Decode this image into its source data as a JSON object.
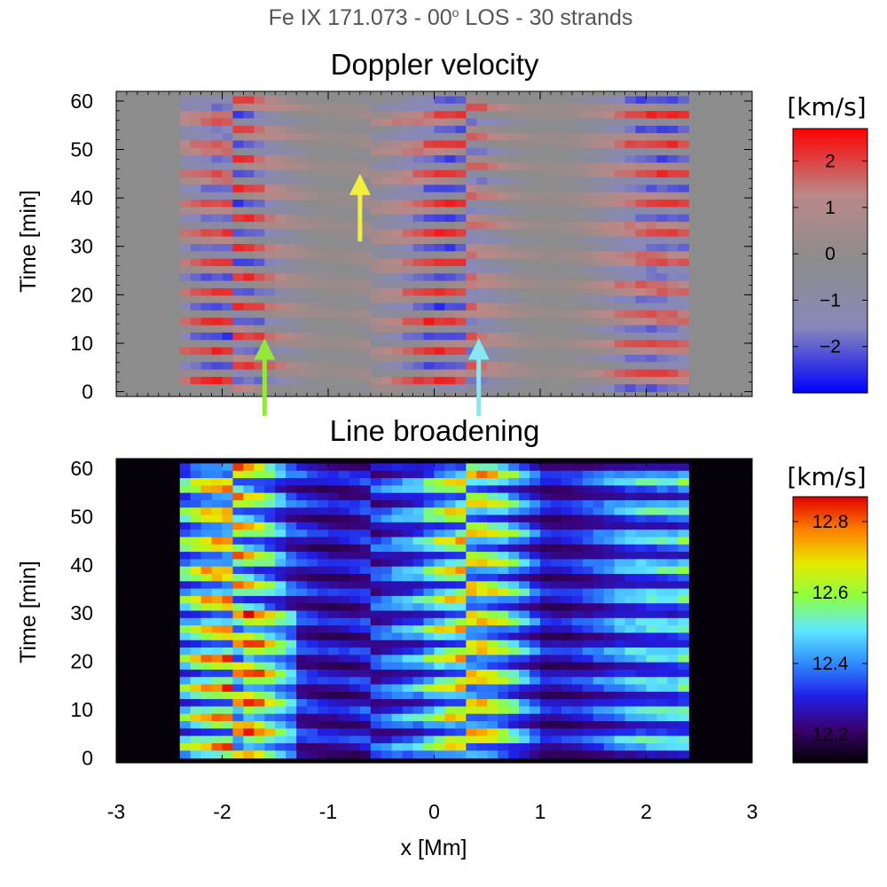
{
  "figure": {
    "title_main": "Fe IX 171.073 - 00",
    "title_sup": "o",
    "title_tail": " LOS - 30 strands"
  },
  "chart_data": [
    {
      "type": "heatmap",
      "title": "Doppler velocity",
      "xlabel": "",
      "ylabel": "Time [min]",
      "xlim": [
        -3,
        3
      ],
      "ylim": [
        -1,
        62
      ],
      "x_ticks": [
        "-3",
        "-2",
        "-1",
        "0",
        "1",
        "2",
        "3"
      ],
      "y_ticks": [
        0,
        10,
        20,
        30,
        40,
        50,
        60
      ],
      "colorbar": {
        "label": "[km/s]",
        "range": [
          -3,
          2.7
        ],
        "ticks": [
          2,
          1,
          0,
          -1,
          -2
        ],
        "tick_labels": [
          "2",
          "1",
          "0",
          "−1",
          "−2"
        ],
        "colors": [
          "#0000ff",
          "#8888bb",
          "#8c8c8c",
          "#bb8888",
          "#ff0000"
        ]
      },
      "data_extent_x": [
        -2.4,
        2.4
      ],
      "strand_boundaries_x": [
        -1.9,
        -0.55,
        0.3,
        1.4
      ],
      "annotations": [
        {
          "type": "arrow",
          "color": "#97e53a",
          "x": -1.6,
          "y_from": -5,
          "y_to": 11
        },
        {
          "type": "arrow",
          "color": "#f2ee3c",
          "x": -0.7,
          "y_from": 31,
          "y_to": 45
        },
        {
          "type": "arrow",
          "color": "#86e8f0",
          "x": 0.42,
          "y_from": -5,
          "y_to": 11
        }
      ]
    },
    {
      "type": "heatmap",
      "title": "Line broadening",
      "xlabel": "x [Mm]",
      "ylabel": "Time [min]",
      "xlim": [
        -3,
        3
      ],
      "ylim": [
        -1,
        62
      ],
      "x_ticks": [
        "-3",
        "-2",
        "-1",
        "0",
        "1",
        "2",
        "3"
      ],
      "y_ticks": [
        0,
        10,
        20,
        30,
        40,
        50,
        60
      ],
      "colorbar": {
        "label": "[km/s]",
        "range": [
          12.12,
          12.87
        ],
        "ticks": [
          12.8,
          12.6,
          12.4,
          12.2
        ],
        "tick_labels": [
          "12.8",
          "12.6",
          "12.4",
          "12.2"
        ],
        "colors": [
          "#000000",
          "#3a0070",
          "#2020e8",
          "#2f8cff",
          "#5fe8ff",
          "#8cff40",
          "#e8e800",
          "#ff8000",
          "#e00000"
        ]
      },
      "data_extent_x": [
        -2.4,
        2.4
      ],
      "strand_boundaries_x": [
        -1.9,
        -0.55,
        0.3,
        1.4
      ]
    }
  ]
}
